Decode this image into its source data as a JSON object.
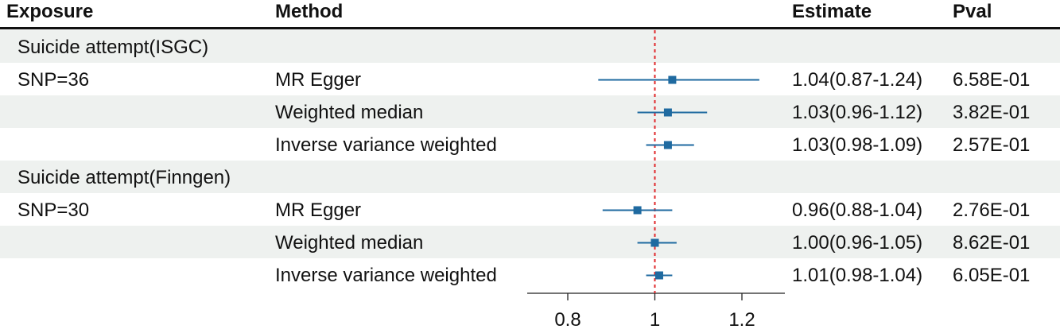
{
  "header": {
    "exposure": "Exposure",
    "method": "Method",
    "estimate": "Estimate",
    "pval": "Pval"
  },
  "colors": {
    "band": "#eef1ef",
    "point": "#1f6aa0",
    "reference_line": "#e0282b",
    "text": "#111111"
  },
  "rows": [
    {
      "exposure": "Suicide attempt(ISGC)",
      "method": "",
      "estimate": "",
      "pval": "",
      "group_header": true
    },
    {
      "exposure": "SNP=36",
      "method": "MR Egger",
      "estimate": "1.04(0.87-1.24)",
      "pval": "6.58E-01"
    },
    {
      "exposure": "",
      "method": "Weighted median",
      "estimate": "1.03(0.96-1.12)",
      "pval": "3.82E-01"
    },
    {
      "exposure": "",
      "method": "Inverse variance weighted",
      "estimate": "1.03(0.98-1.09)",
      "pval": "2.57E-01"
    },
    {
      "exposure": "Suicide attempt(Finngen)",
      "method": "",
      "estimate": "",
      "pval": "",
      "group_header": true
    },
    {
      "exposure": "SNP=30",
      "method": "MR Egger",
      "estimate": "0.96(0.88-1.04)",
      "pval": "2.76E-01"
    },
    {
      "exposure": "",
      "method": "Weighted median",
      "estimate": "1.00(0.96-1.05)",
      "pval": "8.62E-01"
    },
    {
      "exposure": "",
      "method": "Inverse variance weighted",
      "estimate": "1.01(0.98-1.04)",
      "pval": "6.05E-01"
    }
  ],
  "chart_data": {
    "type": "scatter",
    "subtype": "forest",
    "x_ticks": [
      {
        "value": 0.8,
        "label": "0.8"
      },
      {
        "value": 1.0,
        "label": "1"
      },
      {
        "value": 1.2,
        "label": "1.2"
      }
    ],
    "reference_value": 1.0,
    "series": [
      {
        "values": [
          {
            "row": 1,
            "estimate": 1.04,
            "lower": 0.87,
            "upper": 1.24
          },
          {
            "row": 2,
            "estimate": 1.03,
            "lower": 0.96,
            "upper": 1.12
          },
          {
            "row": 3,
            "estimate": 1.03,
            "lower": 0.98,
            "upper": 1.09
          },
          {
            "row": 5,
            "estimate": 0.96,
            "lower": 0.88,
            "upper": 1.04
          },
          {
            "row": 6,
            "estimate": 1.0,
            "lower": 0.96,
            "upper": 1.05
          },
          {
            "row": 7,
            "estimate": 1.01,
            "lower": 0.98,
            "upper": 1.04
          }
        ]
      }
    ]
  }
}
